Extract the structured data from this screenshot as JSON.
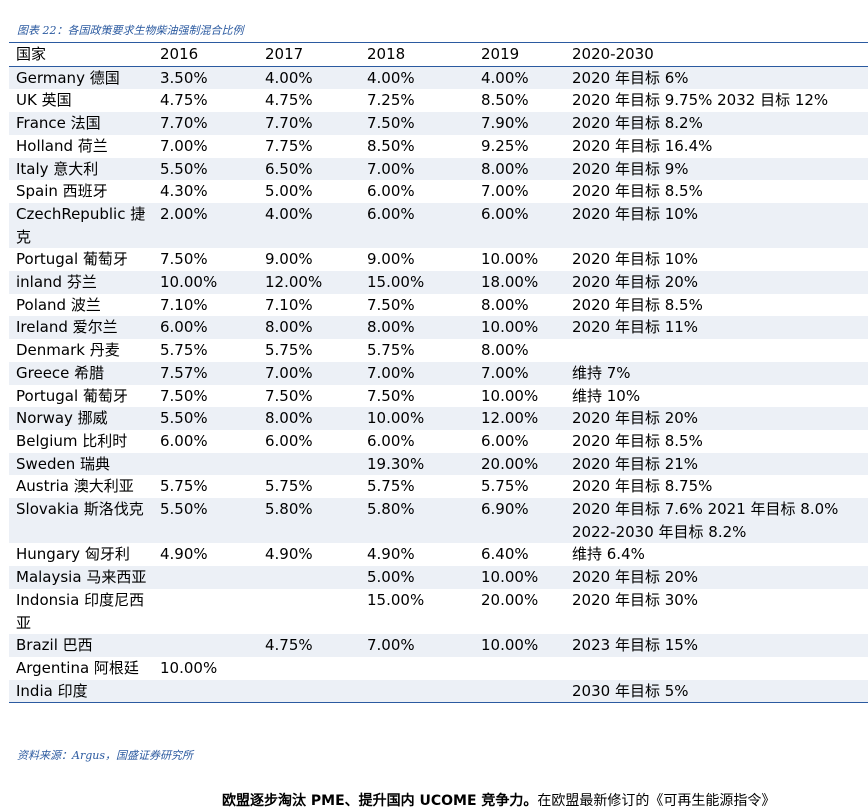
{
  "caption": "图表 22：各国政策要求生物柴油强制混合比例",
  "table": {
    "headers": [
      "国家",
      "2016",
      "2017",
      "2018",
      "2019",
      "2020-2030"
    ],
    "rows": [
      {
        "country": "Germany 德国",
        "y2016": "3.50%",
        "y2017": "4.00%",
        "y2018": "4.00%",
        "y2019": "4.00%",
        "target": "2020 年目标 6%"
      },
      {
        "country": "UK 英国",
        "y2016": "4.75%",
        "y2017": "4.75%",
        "y2018": "7.25%",
        "y2019": "8.50%",
        "target": "2020 年目标 9.75% 2032 目标 12%"
      },
      {
        "country": "France 法国",
        "y2016": "7.70%",
        "y2017": "7.70%",
        "y2018": "7.50%",
        "y2019": "7.90%",
        "target": "2020 年目标 8.2%"
      },
      {
        "country": "Holland 荷兰",
        "y2016": "7.00%",
        "y2017": "7.75%",
        "y2018": "8.50%",
        "y2019": "9.25%",
        "target": "2020 年目标 16.4%"
      },
      {
        "country": "Italy 意大利",
        "y2016": "5.50%",
        "y2017": "6.50%",
        "y2018": "7.00%",
        "y2019": "8.00%",
        "target": "2020 年目标 9%"
      },
      {
        "country": "Spain 西班牙",
        "y2016": "4.30%",
        "y2017": "5.00%",
        "y2018": "6.00%",
        "y2019": "7.00%",
        "target": "2020 年目标 8.5%"
      },
      {
        "country": "CzechRepublic 捷克",
        "y2016": "2.00%",
        "y2017": "4.00%",
        "y2018": "6.00%",
        "y2019": "6.00%",
        "target": "2020 年目标 10%"
      },
      {
        "country": "Portugal 葡萄牙",
        "y2016": "7.50%",
        "y2017": "9.00%",
        "y2018": "9.00%",
        "y2019": "10.00%",
        "target": "2020 年目标 10%"
      },
      {
        "country": "inland 芬兰",
        "y2016": "10.00%",
        "y2017": "12.00%",
        "y2018": "15.00%",
        "y2019": "18.00%",
        "target": "2020 年目标 20%"
      },
      {
        "country": "Poland 波兰",
        "y2016": "7.10%",
        "y2017": "7.10%",
        "y2018": "7.50%",
        "y2019": "8.00%",
        "target": "2020 年目标 8.5%"
      },
      {
        "country": "Ireland 爱尔兰",
        "y2016": "6.00%",
        "y2017": "8.00%",
        "y2018": "8.00%",
        "y2019": "10.00%",
        "target": "2020 年目标 11%"
      },
      {
        "country": "Denmark 丹麦",
        "y2016": "5.75%",
        "y2017": "5.75%",
        "y2018": "5.75%",
        "y2019": "8.00%",
        "target": ""
      },
      {
        "country": "Greece 希腊",
        "y2016": "7.57%",
        "y2017": "7.00%",
        "y2018": "7.00%",
        "y2019": "7.00%",
        "target": "维持 7%"
      },
      {
        "country": "Portugal 葡萄牙",
        "y2016": "7.50%",
        "y2017": "7.50%",
        "y2018": "7.50%",
        "y2019": "10.00%",
        "target": "维持 10%"
      },
      {
        "country": "Norway 挪威",
        "y2016": "5.50%",
        "y2017": "8.00%",
        "y2018": "10.00%",
        "y2019": "12.00%",
        "target": "2020 年目标 20%"
      },
      {
        "country": "Belgium 比利时",
        "y2016": "6.00%",
        "y2017": "6.00%",
        "y2018": "6.00%",
        "y2019": "6.00%",
        "target": "2020 年目标 8.5%"
      },
      {
        "country": "Sweden 瑞典",
        "y2016": "",
        "y2017": "",
        "y2018": "19.30%",
        "y2019": "20.00%",
        "target": "2020 年目标 21%"
      },
      {
        "country": "Austria 澳大利亚",
        "y2016": "5.75%",
        "y2017": "5.75%",
        "y2018": "5.75%",
        "y2019": "5.75%",
        "target": "2020 年目标 8.75%"
      },
      {
        "country": "Slovakia 斯洛伐克",
        "y2016": "5.50%",
        "y2017": "5.80%",
        "y2018": "5.80%",
        "y2019": "6.90%",
        "target": "2020 年目标 7.6% 2021 年目标 8.0% 2022-2030 年目标 8.2%"
      },
      {
        "country": "Hungary 匈牙利",
        "y2016": "4.90%",
        "y2017": "4.90%",
        "y2018": "4.90%",
        "y2019": "6.40%",
        "target": "维持 6.4%"
      },
      {
        "country": "Malaysia 马来西亚",
        "y2016": "",
        "y2017": "",
        "y2018": "5.00%",
        "y2019": "10.00%",
        "target": "2020 年目标 20%"
      },
      {
        "country": "Indonsia 印度尼西亚",
        "y2016": "",
        "y2017": "",
        "y2018": "15.00%",
        "y2019": "20.00%",
        "target": "2020 年目标 30%"
      },
      {
        "country": "Brazil 巴西",
        "y2016": "",
        "y2017": "4.75%",
        "y2018": "7.00%",
        "y2019": "10.00%",
        "target": "2023 年目标 15%"
      },
      {
        "country": "Argentina 阿根廷",
        "y2016": "10.00%",
        "y2017": "",
        "y2018": "",
        "y2019": "",
        "target": ""
      },
      {
        "country": "India 印度",
        "y2016": "",
        "y2017": "",
        "y2018": "",
        "y2019": "",
        "target": "2030 年目标 5%"
      }
    ]
  },
  "source": "资料来源：Argus，国盛证券研究所",
  "body_text_bold": "欧盟逐步淘汰 PME、提升国内 UCOME 竞争力。",
  "body_text_rest": "在欧盟最新修订的《可再生能源指令》"
}
